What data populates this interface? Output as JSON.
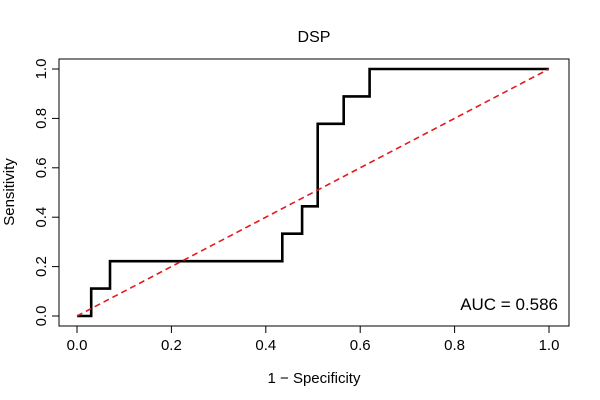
{
  "chart_data": {
    "type": "line",
    "title": "DSP",
    "xlabel": "1 − Specificity",
    "ylabel": "Sensitivity",
    "xlim": [
      0,
      1
    ],
    "ylim": [
      0,
      1
    ],
    "xticks": [
      "0.0",
      "0.2",
      "0.4",
      "0.6",
      "0.8",
      "1.0"
    ],
    "yticks": [
      "0.0",
      "0.2",
      "0.4",
      "0.6",
      "0.8",
      "1.0"
    ],
    "grid": false,
    "annotation": "AUC = 0.586",
    "series": [
      {
        "style": "solid",
        "color": "#000000",
        "x": [
          0,
          0.03,
          0.03,
          0.07,
          0.07,
          0.435,
          0.435,
          0.477,
          0.477,
          0.51,
          0.51,
          0.565,
          0.565,
          0.62,
          0.62,
          1.0
        ],
        "y": [
          0,
          0,
          0.111,
          0.111,
          0.222,
          0.222,
          0.333,
          0.333,
          0.444,
          0.444,
          0.778,
          0.778,
          0.889,
          0.889,
          1.0,
          1.0
        ]
      },
      {
        "style": "dashed",
        "color": "#e41a1c",
        "x": [
          0,
          1
        ],
        "y": [
          0,
          1
        ]
      }
    ]
  }
}
